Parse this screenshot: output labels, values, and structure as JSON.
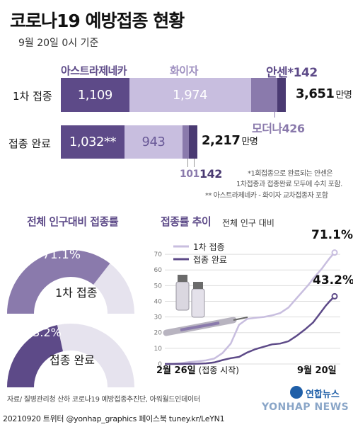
{
  "header": {
    "title": "코로나19 예방접종 현황",
    "as_of": "9월 20일 0시 기준"
  },
  "colors": {
    "astrazeneca": "#5d4a88",
    "pfizer": "#c8bedf",
    "moderna": "#8a7aac",
    "janssen": "#4a3a72",
    "light": "#e6e3ee",
    "grid": "#dddddd"
  },
  "chart_data": [
    {
      "type": "bar",
      "orientation": "horizontal",
      "stacked": true,
      "categories": [
        "1차 접종",
        "접종 완료"
      ],
      "series": [
        {
          "name": "아스트라제네카",
          "values": [
            1109,
            1032
          ],
          "labels": [
            "1,109",
            "1,032**"
          ]
        },
        {
          "name": "화이자",
          "values": [
            1974,
            943
          ],
          "labels": [
            "1,974",
            "943"
          ]
        },
        {
          "name": "모더나",
          "values": [
            426,
            101
          ],
          "labels": [
            "모더나426",
            "101"
          ]
        },
        {
          "name": "안센",
          "values": [
            142,
            142
          ],
          "labels": [
            "안센*142",
            "142"
          ]
        }
      ],
      "totals": [
        {
          "value": "3,651",
          "unit": "만명"
        },
        {
          "value": "2,217",
          "unit": "만명"
        }
      ],
      "notes": [
        "*1회접종으로 완료되는 얀센은",
        "1차접종과 접종완료 모두에 수치 포함.",
        "** 아스트라제네카 - 화이자 교차접종자 포함"
      ]
    },
    {
      "type": "pie",
      "title": "전체 인구대비 접종률",
      "gauges": [
        {
          "label": "1차 접종",
          "value": 71.1,
          "display": "71.1%"
        },
        {
          "label": "접종 완료",
          "value": 43.2,
          "display": "43.2%"
        }
      ]
    },
    {
      "type": "line",
      "title": "접종률 추이",
      "subtitle": "전체 인구 대비",
      "yticks": [
        0,
        10,
        20,
        30,
        40,
        50,
        60,
        70
      ],
      "ylim": [
        0,
        75
      ],
      "x_start_label": "2월 26일",
      "x_start_note": "(접종 시작)",
      "x_end_label": "9월 20일",
      "series": [
        {
          "name": "1차 접종",
          "end_label": "71.1%",
          "points": [
            [
              0,
              0
            ],
            [
              10,
              0.1
            ],
            [
              20,
              0.6
            ],
            [
              30,
              1.2
            ],
            [
              40,
              1.7
            ],
            [
              50,
              2.3
            ],
            [
              60,
              3.5
            ],
            [
              70,
              7.0
            ],
            [
              80,
              13
            ],
            [
              90,
              25
            ],
            [
              100,
              28.8
            ],
            [
              110,
              29.5
            ],
            [
              120,
              30.0
            ],
            [
              125,
              30.5
            ],
            [
              130,
              31.0
            ],
            [
              140,
              32.5
            ],
            [
              150,
              36.0
            ],
            [
              160,
              42.0
            ],
            [
              170,
              48.0
            ],
            [
              175,
              51.0
            ],
            [
              180,
              54.5
            ],
            [
              185,
              57.5
            ],
            [
              190,
              60.5
            ],
            [
              195,
              64.0
            ],
            [
              200,
              67.5
            ],
            [
              206,
              71.1
            ]
          ]
        },
        {
          "name": "접종 완료",
          "end_label": "43.2%",
          "points": [
            [
              0,
              0
            ],
            [
              20,
              0
            ],
            [
              30,
              0.1
            ],
            [
              40,
              0.2
            ],
            [
              50,
              0.4
            ],
            [
              60,
              1.0
            ],
            [
              70,
              2.5
            ],
            [
              80,
              3.7
            ],
            [
              90,
              4.5
            ],
            [
              100,
              7.3
            ],
            [
              110,
              9.5
            ],
            [
              120,
              11.0
            ],
            [
              130,
              12.5
            ],
            [
              140,
              13.0
            ],
            [
              150,
              14.5
            ],
            [
              160,
              18.0
            ],
            [
              170,
              22.0
            ],
            [
              180,
              26.5
            ],
            [
              190,
              33.5
            ],
            [
              195,
              37.0
            ],
            [
              200,
              40.0
            ],
            [
              206,
              43.2
            ]
          ]
        }
      ]
    }
  ],
  "footer": {
    "source": "자료/ 질병관리청 산하 코로나19 예방접종추진단, 아워월드인데이터",
    "id": "20210920  트위터 @yonhap_graphics  페이스북 tuney.kr/LeYN1",
    "brand": "연합뉴스",
    "watermark": "YONHAP NEWS"
  }
}
